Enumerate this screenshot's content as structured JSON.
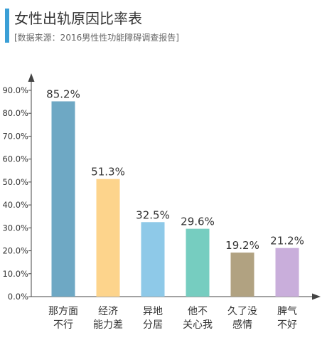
{
  "header": {
    "title": "女性出轨原因比率表",
    "subtitle": "[数据来源：2016男性性功能障碍调查报告]"
  },
  "chart_data": {
    "type": "bar",
    "title": "女性出轨原因比率表",
    "subtitle": "[数据来源：2016男性性功能障碍调查报告]",
    "categories": [
      [
        "那方面",
        "不行"
      ],
      [
        "经济",
        "能力差"
      ],
      [
        "异地",
        "分居"
      ],
      [
        "他不",
        "关心我"
      ],
      [
        "久了没",
        "感情"
      ],
      [
        "脾气",
        "不好"
      ]
    ],
    "values": [
      85.2,
      51.3,
      32.5,
      29.6,
      19.2,
      21.2
    ],
    "value_labels": [
      "85.2%",
      "51.3%",
      "32.5%",
      "29.6%",
      "19.2%",
      "21.2%"
    ],
    "colors": [
      "#6ea8c4",
      "#fdd48c",
      "#8ec9e8",
      "#76cdc0",
      "#b1a281",
      "#c9aedb"
    ],
    "yticks": [
      "0.0%",
      "10.0%",
      "20.0%",
      "30.0%",
      "40.0%",
      "50.0%",
      "60.0%",
      "70.0%",
      "80.0%",
      "90.0%"
    ],
    "ylim": [
      0,
      90
    ],
    "xlabel": "",
    "ylabel": "",
    "grid": false,
    "legend": "none"
  }
}
